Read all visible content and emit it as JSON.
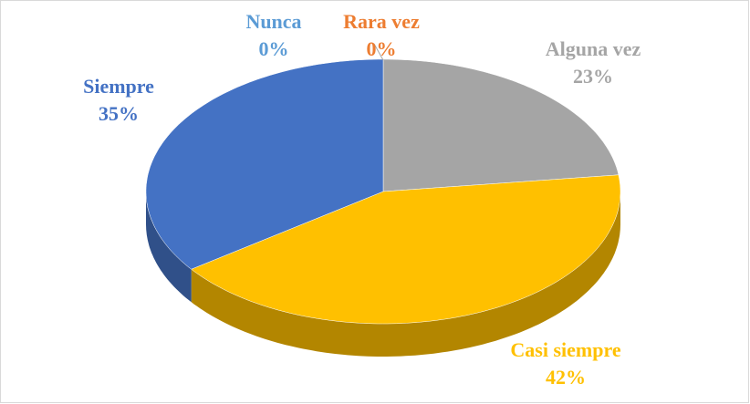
{
  "chart_data": {
    "type": "pie",
    "categories": [
      "Nunca",
      "Rara vez",
      "Alguna vez",
      "Casi siempre",
      "Siempre"
    ],
    "values": [
      0,
      0,
      23,
      42,
      35
    ],
    "value_labels": [
      "0%",
      "0%",
      "23%",
      "42%",
      "35%"
    ],
    "colors": [
      "#5b9bd5",
      "#ed7d31",
      "#a5a5a5",
      "#ffc000",
      "#4472c4"
    ]
  }
}
